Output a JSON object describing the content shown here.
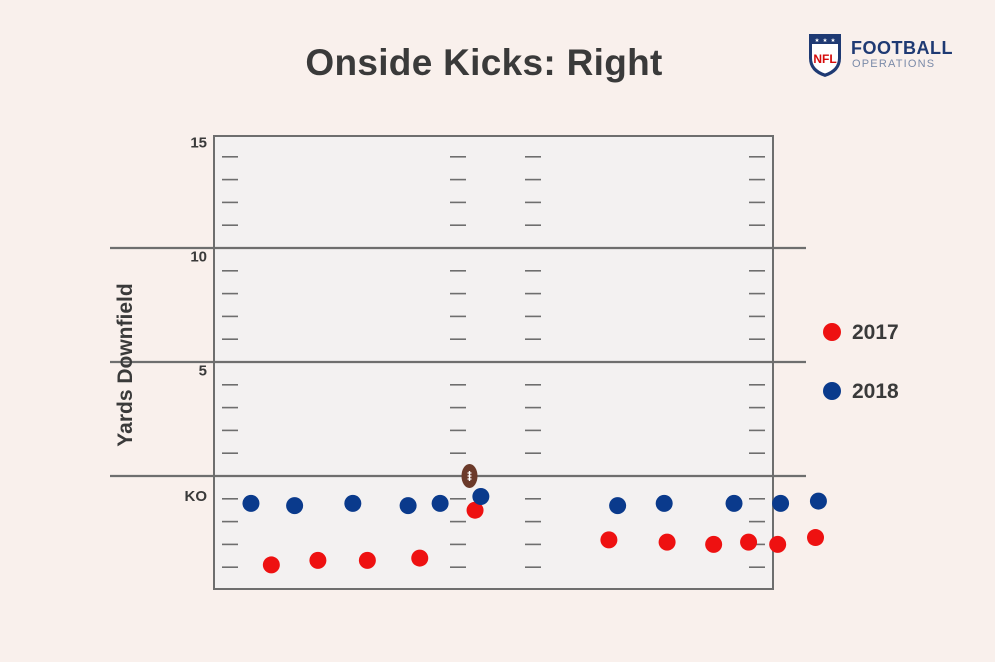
{
  "title": "Onside Kicks: Right",
  "logo": {
    "line1": "FOOTBALL",
    "line2": "OPERATIONS",
    "shield_text": "NFL"
  },
  "colors": {
    "background": "#f9f0ec",
    "field": "#f3f1f1",
    "lines": "#6e6e6e",
    "series_2017": "#ee1111",
    "series_2018": "#0a3a8c",
    "ball": "#6b3a2a"
  },
  "chart_data": {
    "type": "scatter",
    "title": "Onside Kicks: Right",
    "ylabel": "Yards Downfield",
    "xlabel": "",
    "y_ticks": [
      "KO",
      "5",
      "10",
      "15"
    ],
    "y_tick_values": [
      0,
      5,
      10,
      15
    ],
    "grid": true,
    "legend_position": "right",
    "ball_marker": {
      "x": 0,
      "y": 0
    },
    "series": [
      {
        "name": "2017",
        "color": "#ee1111",
        "points": [
          {
            "x": -7.6,
            "y": -3.9
          },
          {
            "x": -6.0,
            "y": -3.7
          },
          {
            "x": -4.3,
            "y": -3.7
          },
          {
            "x": -2.5,
            "y": -3.6
          },
          {
            "x": -0.6,
            "y": -1.5
          },
          {
            "x": 4.0,
            "y": -2.8
          },
          {
            "x": 6.0,
            "y": -2.9
          },
          {
            "x": 7.6,
            "y": -3.0
          },
          {
            "x": 8.8,
            "y": -2.9
          },
          {
            "x": 9.8,
            "y": -3.0
          },
          {
            "x": 11.1,
            "y": -2.7
          }
        ]
      },
      {
        "name": "2018",
        "color": "#0a3a8c",
        "points": [
          {
            "x": -8.3,
            "y": -1.2
          },
          {
            "x": -6.8,
            "y": -1.3
          },
          {
            "x": -4.8,
            "y": -1.2
          },
          {
            "x": -2.9,
            "y": -1.3
          },
          {
            "x": -1.8,
            "y": -1.2
          },
          {
            "x": -0.4,
            "y": -0.9
          },
          {
            "x": 4.3,
            "y": -1.3
          },
          {
            "x": 5.9,
            "y": -1.2
          },
          {
            "x": 8.3,
            "y": -1.2
          },
          {
            "x": 9.9,
            "y": -1.2
          },
          {
            "x": 11.2,
            "y": -1.1
          }
        ]
      }
    ]
  }
}
